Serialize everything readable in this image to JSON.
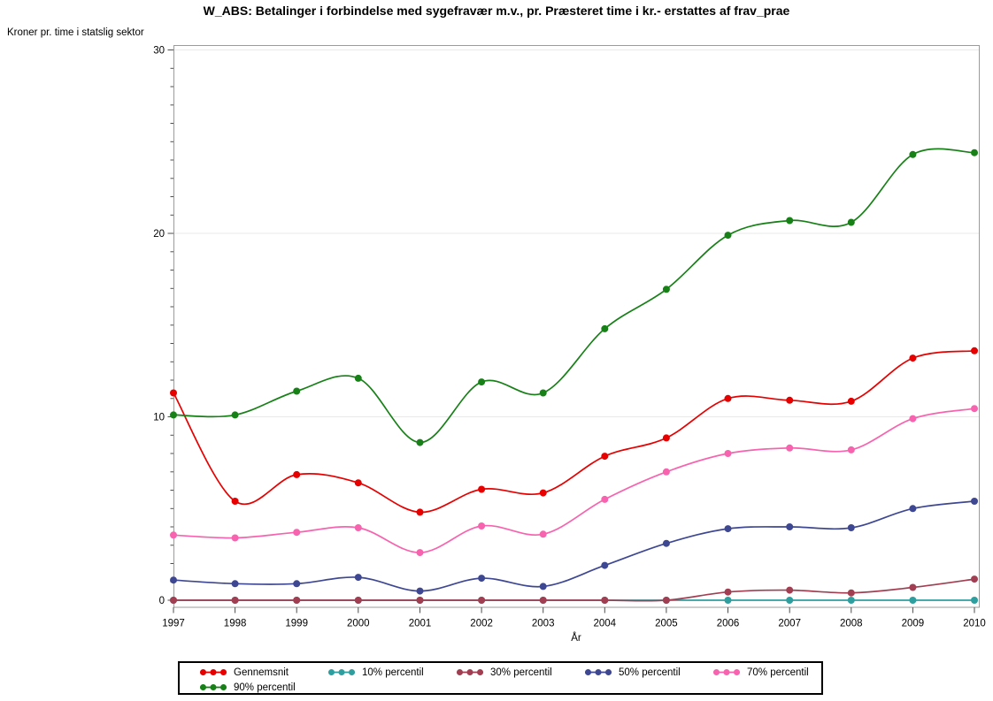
{
  "title": "W_ABS: Betalinger i forbindelse med sygefravær m.v., pr. Præsteret time i kr.- erstattes af frav_prae",
  "y_axis_title": "Kroner pr. time i statslig sektor",
  "x_axis_title": "År",
  "colors": {
    "gridline": "#E9E9E9",
    "frame": "#9B9B9B",
    "tick": "#4D4D4D",
    "legend_border": "#000000"
  },
  "chart_data": {
    "type": "line",
    "title": "W_ABS: Betalinger i forbindelse med sygefravær m.v., pr. Præsteret time i kr.- erstattes af frav_prae",
    "xlabel": "År",
    "ylabel": "Kroner pr. time i statslig sektor",
    "x": [
      1997,
      1998,
      1999,
      2000,
      2001,
      2002,
      2003,
      2004,
      2005,
      2006,
      2007,
      2008,
      2009,
      2010
    ],
    "ylim": [
      0,
      30
    ],
    "yticks": [
      0,
      10,
      20,
      30
    ],
    "y_minor_tick_step": 1,
    "grid": "horizontal",
    "smooth": true,
    "legend_position": "bottom",
    "legend_columns": 5,
    "series": [
      {
        "name": "Gennemsnit",
        "color": "#E60000",
        "values": [
          11.3,
          5.4,
          6.85,
          6.4,
          4.8,
          6.05,
          5.85,
          7.85,
          8.85,
          11.0,
          10.9,
          10.85,
          13.2,
          13.6
        ]
      },
      {
        "name": "10% percentil",
        "color": "#2E9E9E",
        "values": [
          0,
          0,
          0,
          0,
          0,
          0,
          0,
          0,
          0,
          0,
          0,
          0,
          0,
          0
        ]
      },
      {
        "name": "30% percentil",
        "color": "#A23E52",
        "values": [
          0,
          0,
          0,
          0,
          0,
          0,
          0,
          0,
          0,
          0.45,
          0.55,
          0.4,
          0.7,
          1.15
        ]
      },
      {
        "name": "50% percentil",
        "color": "#3E4792",
        "values": [
          1.1,
          0.9,
          0.9,
          1.25,
          0.5,
          1.2,
          0.75,
          1.9,
          3.1,
          3.9,
          4.0,
          3.95,
          5.0,
          5.4
        ]
      },
      {
        "name": "70% percentil",
        "color": "#F763AE",
        "values": [
          3.55,
          3.4,
          3.7,
          3.95,
          2.6,
          4.05,
          3.6,
          5.5,
          7.0,
          8.0,
          8.3,
          8.2,
          9.9,
          10.45
        ]
      },
      {
        "name": "90% percentil",
        "color": "#178017",
        "values": [
          10.1,
          10.1,
          11.4,
          12.1,
          8.6,
          11.9,
          11.3,
          14.8,
          16.95,
          19.9,
          20.7,
          20.6,
          24.3,
          24.4
        ]
      }
    ]
  }
}
